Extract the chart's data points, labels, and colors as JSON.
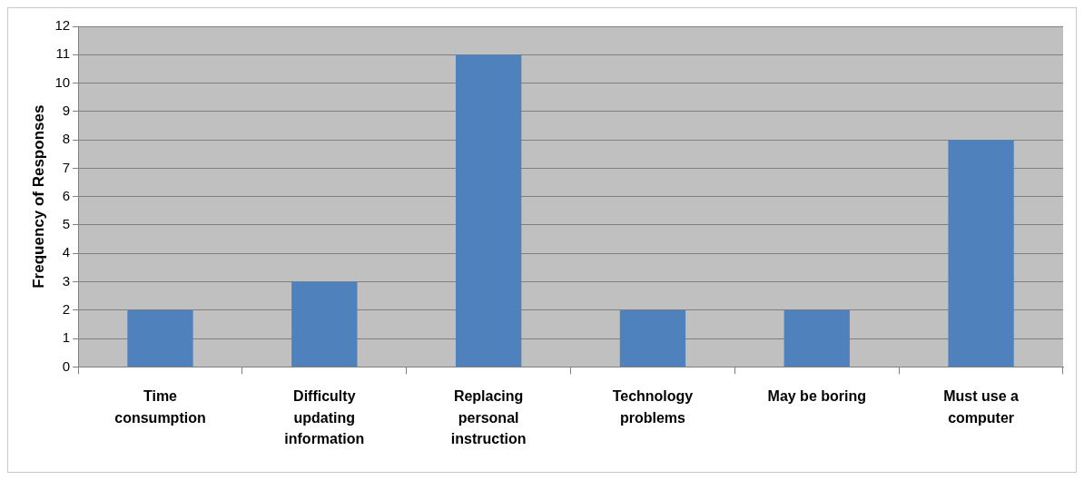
{
  "chart_data": {
    "type": "bar",
    "ylabel": "Frequency of Responses",
    "categories": [
      "Time consumption",
      "Difficulty updating information",
      "Replacing personal instruction",
      "Technology problems",
      "May be boring",
      "Must use a computer"
    ],
    "values": [
      2,
      3,
      11,
      2,
      2,
      8
    ],
    "color": "#4f81bd",
    "ylim": [
      0,
      12
    ],
    "yticks": [
      0,
      1,
      2,
      3,
      4,
      5,
      6,
      7,
      8,
      9,
      10,
      11,
      12
    ],
    "grid": "y",
    "legend": false
  }
}
